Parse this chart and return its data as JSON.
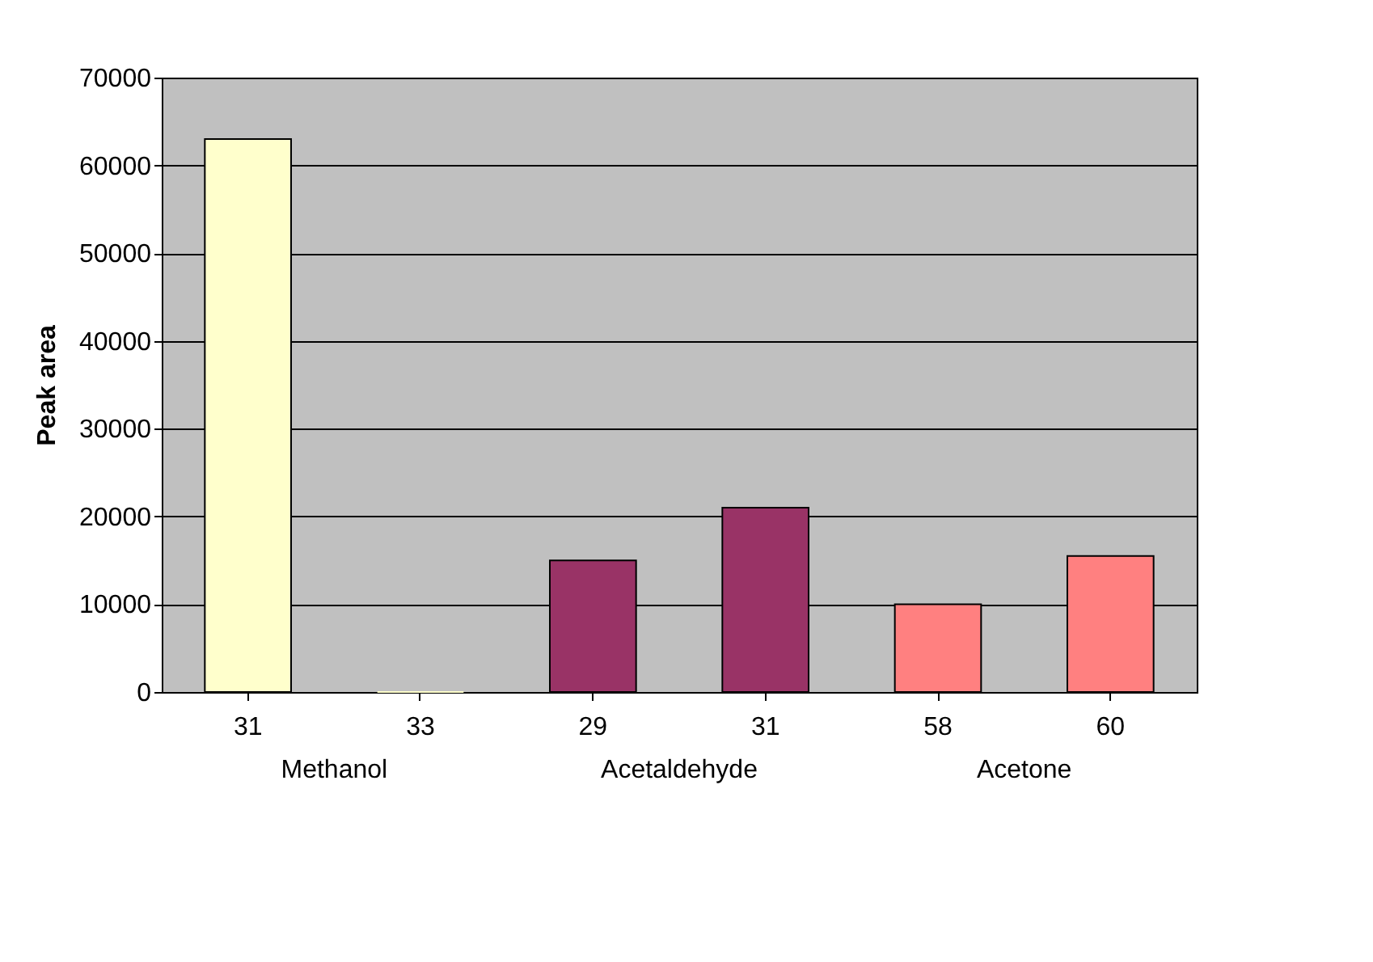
{
  "chart_data": {
    "type": "bar",
    "ylabel": "Peak area",
    "categories": [
      "31",
      "33",
      "29",
      "31",
      "58",
      "60"
    ],
    "values": [
      63000,
      0,
      15000,
      21000,
      10000,
      15500
    ],
    "colors": [
      "#ffffcc",
      "#ffffcc",
      "#993366",
      "#993366",
      "#ff8080",
      "#ff8080"
    ],
    "ylim": [
      0,
      70000
    ],
    "yticks": [
      0,
      10000,
      20000,
      30000,
      40000,
      50000,
      60000,
      70000
    ],
    "grid": "y",
    "annotations": [
      "Methanol",
      "Acetaldehyde",
      "Acetone"
    ]
  }
}
